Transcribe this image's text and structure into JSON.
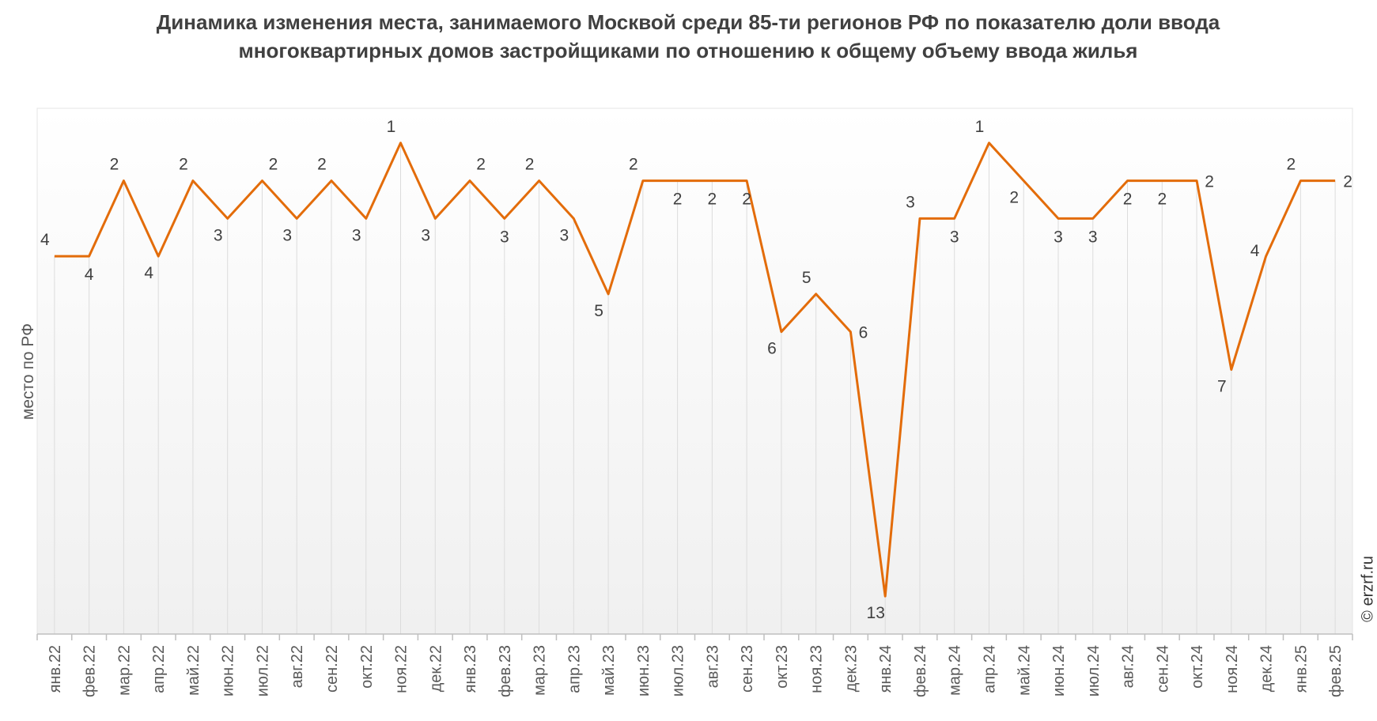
{
  "chart_data": {
    "type": "line",
    "title": "Динамика изменения места, занимаемого Москвой среди 85-ти регионов РФ по показателю доли ввода многоквартирных домов застройщиками по отношению к общему объему ввода жилья",
    "xlabel": "",
    "ylabel": "место по РФ",
    "y_inverted": true,
    "ylim": [
      0,
      14
    ],
    "grid": "vertical drop lines",
    "categories": [
      "янв.22",
      "фев.22",
      "мар.22",
      "апр.22",
      "май.22",
      "июн.22",
      "июл.22",
      "авг.22",
      "сен.22",
      "окт.22",
      "ноя.22",
      "дек.22",
      "янв.23",
      "фев.23",
      "мар.23",
      "апр.23",
      "май.23",
      "июн.23",
      "июл.23",
      "авг.23",
      "сен.23",
      "окт.23",
      "ноя.23",
      "дек.23",
      "янв.24",
      "фев.24",
      "мар.24",
      "апр.24",
      "май.24",
      "июн.24",
      "июл.24",
      "авг.24",
      "сен.24",
      "окт.24",
      "ноя.24",
      "дек.24",
      "янв.25",
      "фев.25"
    ],
    "series": [
      {
        "name": "место по РФ",
        "color": "#e36c0a",
        "values": [
          4,
          4,
          2,
          4,
          2,
          3,
          2,
          3,
          2,
          3,
          1,
          3,
          2,
          3,
          2,
          3,
          5,
          2,
          2,
          2,
          2,
          6,
          5,
          6,
          13,
          3,
          3,
          1,
          2,
          3,
          3,
          2,
          2,
          2,
          7,
          4,
          2,
          2
        ]
      }
    ]
  },
  "credit": "© erzrf.ru"
}
